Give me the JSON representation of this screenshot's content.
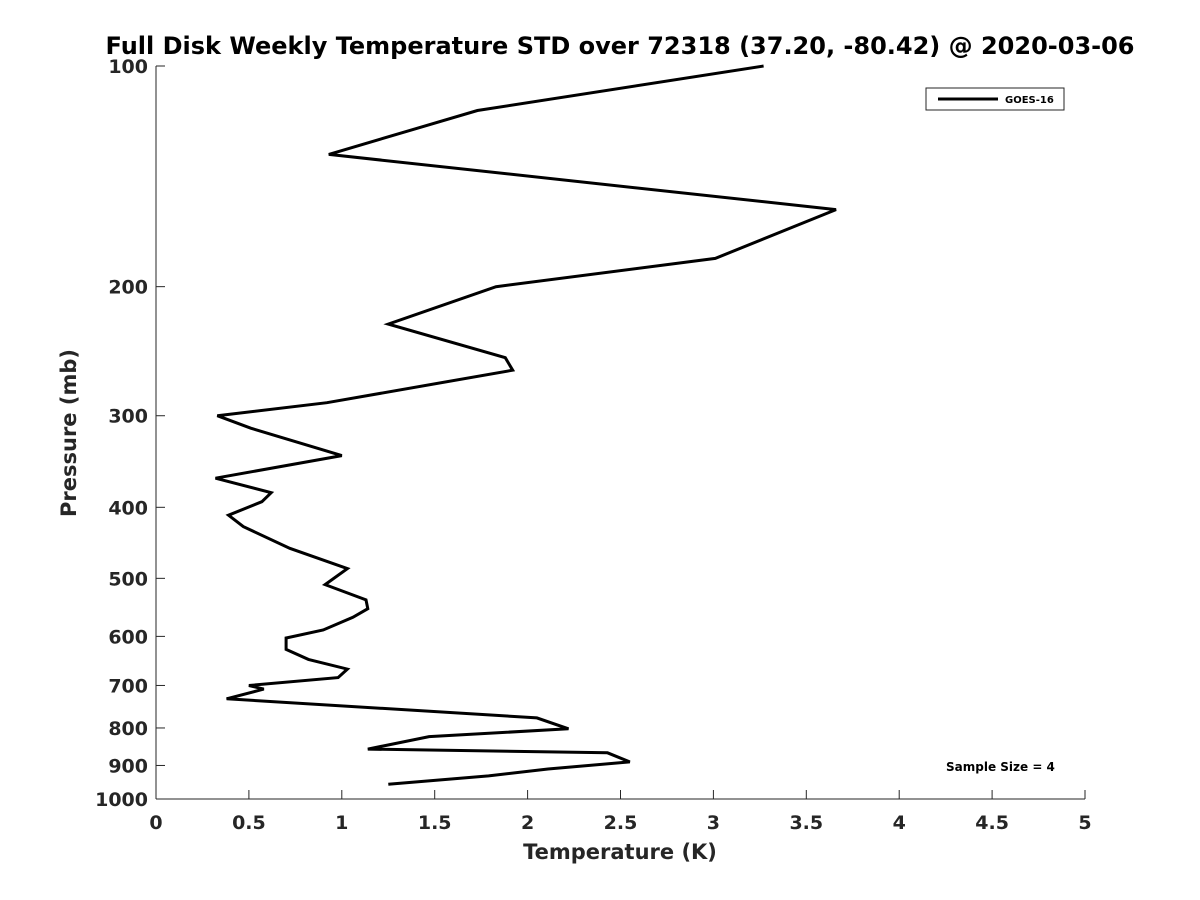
{
  "chart_data": {
    "type": "line",
    "title": "Full Disk Weekly Temperature STD over 72318 (37.20, -80.42) @ 2020-03-06",
    "xlabel": "Temperature (K)",
    "ylabel": "Pressure (mb)",
    "xlim": [
      0,
      5
    ],
    "ylim": [
      100,
      1000
    ],
    "y_scale": "log",
    "y_reversed": true,
    "x_ticks": [
      "0",
      "0.5",
      "1",
      "1.5",
      "2",
      "2.5",
      "3",
      "3.5",
      "4",
      "4.5",
      "5"
    ],
    "y_ticks": [
      "100",
      "200",
      "300",
      "400",
      "500",
      "600",
      "700",
      "800",
      "900",
      "1000"
    ],
    "grid": false,
    "legend_position": "top-right",
    "annotation": "Sample Size = 4",
    "series": [
      {
        "name": "GOES-16",
        "color": "#000000",
        "x": [
          3.27,
          1.73,
          0.93,
          3.66,
          3.01,
          1.83,
          1.25,
          1.88,
          1.92,
          0.92,
          0.33,
          0.51,
          1.0,
          0.32,
          0.62,
          0.57,
          0.39,
          0.47,
          0.72,
          1.03,
          0.91,
          1.13,
          1.14,
          1.06,
          0.9,
          0.7,
          0.7,
          0.82,
          1.03,
          0.98,
          0.5,
          0.58,
          0.38,
          2.05,
          2.22,
          1.47,
          1.14,
          2.43,
          2.55,
          2.11,
          1.79,
          1.25
        ],
        "y": [
          100,
          115,
          132,
          157,
          183,
          200,
          225,
          250,
          260,
          288,
          300,
          312,
          340,
          365,
          382,
          393,
          410,
          425,
          455,
          485,
          510,
          535,
          550,
          565,
          588,
          603,
          625,
          645,
          665,
          683,
          700,
          708,
          730,
          775,
          802,
          822,
          855,
          865,
          890,
          910,
          930,
          955
        ]
      }
    ]
  }
}
